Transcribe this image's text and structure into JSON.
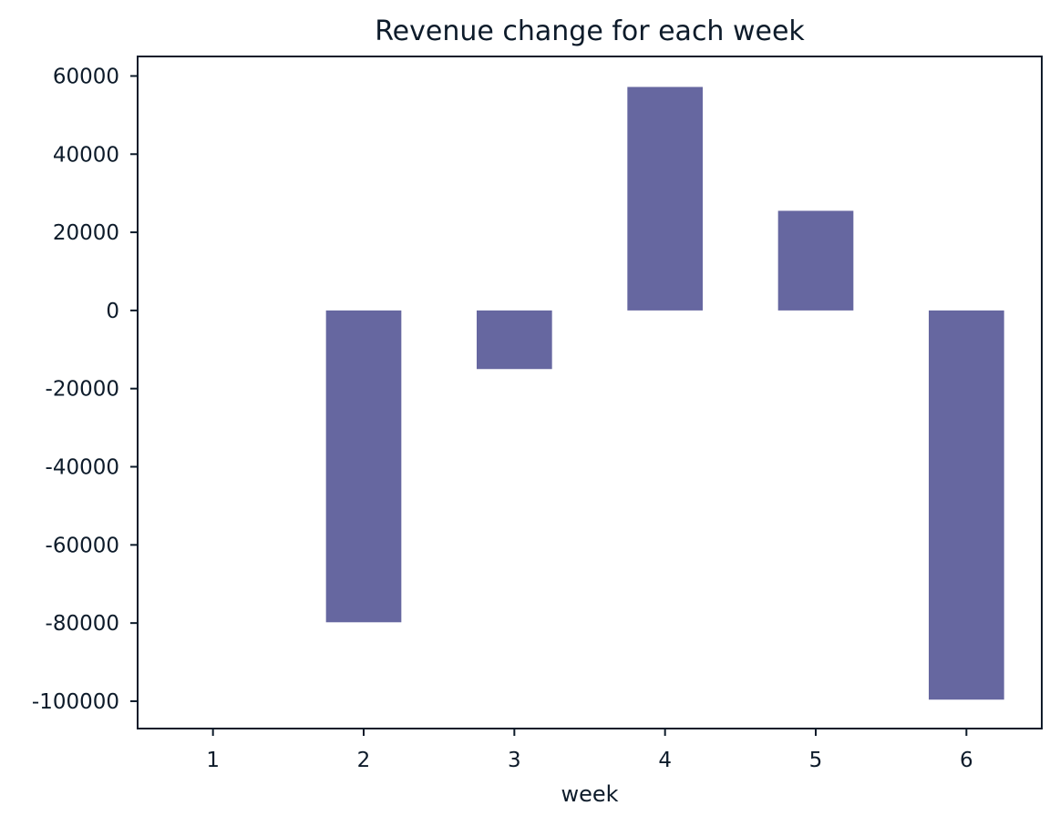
{
  "chart_data": {
    "type": "bar",
    "title": "Revenue change for each week",
    "xlabel": "week",
    "ylabel": "",
    "categories": [
      "1",
      "2",
      "3",
      "4",
      "5",
      "6"
    ],
    "values": [
      0,
      -79800,
      -15000,
      57200,
      25500,
      -99600
    ],
    "ylim": [
      -107000,
      65000
    ],
    "yticks": [
      60000,
      40000,
      20000,
      0,
      -20000,
      -40000,
      -60000,
      -80000,
      -100000
    ],
    "ytick_labels": [
      "60000",
      "40000",
      "20000",
      "0",
      "-20000",
      "-40000",
      "-60000",
      "-80000",
      "-100000"
    ],
    "grid": false,
    "legend": "none",
    "bar_color": "#6667a0",
    "axis_color": "#0d1b2a"
  }
}
